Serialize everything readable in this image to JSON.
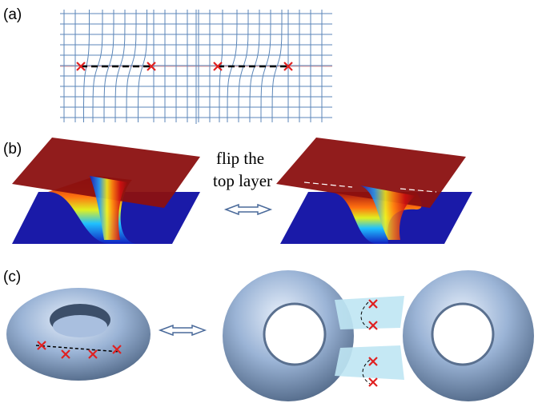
{
  "panels": [
    {
      "label": "(a)"
    },
    {
      "label": "(b)",
      "caption_lines": [
        "flip the",
        "top layer"
      ]
    },
    {
      "label": "(c)"
    }
  ]
}
